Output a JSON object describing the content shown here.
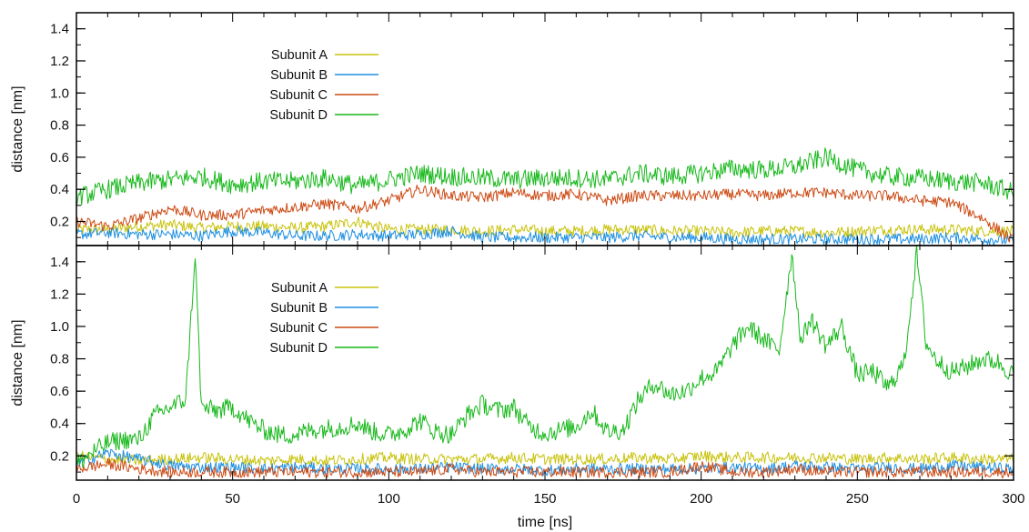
{
  "chart_data": {
    "type": "line",
    "xlabel": "time [ns]",
    "x_ticks": [
      "0",
      "50",
      "100",
      "150",
      "200",
      "250",
      "300"
    ],
    "xlim": [
      0,
      300
    ],
    "series_colors": {
      "Subunit A": "#c8c20a",
      "Subunit B": "#1c8fe0",
      "Subunit C": "#cc4a14",
      "Subunit D": "#16b81a"
    },
    "panels": [
      {
        "id": "top",
        "ylabel": "distance [nm]",
        "ylim": [
          0.05,
          1.5
        ],
        "y_ticks": [
          "0.2",
          "0.4",
          "0.6",
          "0.8",
          "1.0",
          "1.2",
          "1.4"
        ],
        "legend": [
          "Subunit A",
          "Subunit B",
          "Subunit C",
          "Subunit D"
        ],
        "legend_position": "upper-left",
        "series": [
          {
            "name": "Subunit A",
            "x": [
              0,
              10,
              20,
              30,
              40,
              50,
              60,
              70,
              80,
              90,
              100,
              110,
              120,
              130,
              140,
              150,
              160,
              170,
              180,
              190,
              200,
              210,
              220,
              230,
              240,
              250,
              260,
              270,
              280,
              290,
              300
            ],
            "values": [
              0.15,
              0.15,
              0.17,
              0.18,
              0.16,
              0.17,
              0.17,
              0.16,
              0.17,
              0.2,
              0.15,
              0.15,
              0.15,
              0.14,
              0.15,
              0.14,
              0.14,
              0.15,
              0.15,
              0.14,
              0.14,
              0.13,
              0.14,
              0.14,
              0.13,
              0.14,
              0.15,
              0.15,
              0.15,
              0.14,
              0.14
            ]
          },
          {
            "name": "Subunit B",
            "x": [
              0,
              10,
              20,
              30,
              40,
              50,
              60,
              70,
              80,
              90,
              100,
              110,
              120,
              130,
              140,
              150,
              160,
              170,
              180,
              190,
              200,
              210,
              220,
              230,
              240,
              250,
              260,
              270,
              280,
              290,
              300
            ],
            "values": [
              0.12,
              0.13,
              0.12,
              0.12,
              0.11,
              0.14,
              0.13,
              0.11,
              0.11,
              0.12,
              0.11,
              0.12,
              0.14,
              0.1,
              0.1,
              0.1,
              0.1,
              0.1,
              0.11,
              0.1,
              0.1,
              0.09,
              0.09,
              0.09,
              0.09,
              0.09,
              0.09,
              0.09,
              0.1,
              0.09,
              0.08
            ]
          },
          {
            "name": "Subunit C",
            "x": [
              0,
              10,
              20,
              30,
              40,
              50,
              60,
              70,
              80,
              90,
              100,
              110,
              120,
              130,
              140,
              150,
              160,
              170,
              180,
              190,
              200,
              210,
              220,
              230,
              240,
              250,
              260,
              270,
              280,
              290,
              300
            ],
            "values": [
              0.2,
              0.17,
              0.22,
              0.28,
              0.24,
              0.24,
              0.27,
              0.29,
              0.31,
              0.28,
              0.33,
              0.4,
              0.36,
              0.35,
              0.38,
              0.36,
              0.37,
              0.33,
              0.36,
              0.36,
              0.36,
              0.37,
              0.36,
              0.38,
              0.38,
              0.36,
              0.36,
              0.33,
              0.32,
              0.22,
              0.08
            ]
          },
          {
            "name": "Subunit D",
            "x": [
              0,
              10,
              20,
              30,
              40,
              50,
              60,
              70,
              80,
              90,
              100,
              110,
              120,
              130,
              140,
              150,
              160,
              170,
              180,
              190,
              200,
              210,
              220,
              230,
              240,
              250,
              260,
              270,
              280,
              290,
              300
            ],
            "values": [
              0.35,
              0.4,
              0.44,
              0.46,
              0.48,
              0.43,
              0.45,
              0.45,
              0.47,
              0.42,
              0.46,
              0.5,
              0.48,
              0.47,
              0.46,
              0.47,
              0.47,
              0.46,
              0.5,
              0.48,
              0.5,
              0.53,
              0.52,
              0.54,
              0.6,
              0.52,
              0.48,
              0.47,
              0.45,
              0.44,
              0.38
            ]
          }
        ]
      },
      {
        "id": "bottom",
        "ylabel": "distance [nm]",
        "ylim": [
          0.05,
          1.5
        ],
        "y_ticks": [
          "0.2",
          "0.4",
          "0.6",
          "0.8",
          "1.0",
          "1.2",
          "1.4"
        ],
        "legend": [
          "Subunit A",
          "Subunit B",
          "Subunit C",
          "Subunit D"
        ],
        "legend_position": "upper-left",
        "series": [
          {
            "name": "Subunit A",
            "x": [
              0,
              10,
              20,
              30,
              40,
              50,
              60,
              70,
              80,
              90,
              100,
              110,
              120,
              130,
              140,
              150,
              160,
              170,
              180,
              190,
              200,
              210,
              220,
              230,
              240,
              250,
              260,
              270,
              280,
              290,
              300
            ],
            "values": [
              0.2,
              0.18,
              0.17,
              0.18,
              0.19,
              0.18,
              0.17,
              0.18,
              0.17,
              0.18,
              0.19,
              0.18,
              0.18,
              0.18,
              0.19,
              0.18,
              0.18,
              0.18,
              0.19,
              0.18,
              0.2,
              0.19,
              0.19,
              0.19,
              0.19,
              0.18,
              0.19,
              0.18,
              0.19,
              0.18,
              0.18
            ]
          },
          {
            "name": "Subunit B",
            "x": [
              0,
              10,
              20,
              30,
              40,
              50,
              60,
              70,
              80,
              90,
              100,
              110,
              120,
              130,
              140,
              150,
              160,
              170,
              180,
              190,
              200,
              210,
              220,
              230,
              240,
              250,
              260,
              270,
              280,
              290,
              300
            ],
            "values": [
              0.15,
              0.22,
              0.18,
              0.14,
              0.13,
              0.13,
              0.12,
              0.13,
              0.12,
              0.12,
              0.12,
              0.12,
              0.13,
              0.12,
              0.12,
              0.11,
              0.12,
              0.12,
              0.12,
              0.12,
              0.12,
              0.13,
              0.12,
              0.14,
              0.13,
              0.12,
              0.13,
              0.12,
              0.14,
              0.13,
              0.12
            ]
          },
          {
            "name": "Subunit C",
            "x": [
              0,
              10,
              20,
              30,
              40,
              50,
              60,
              70,
              80,
              90,
              100,
              110,
              120,
              130,
              140,
              150,
              160,
              170,
              180,
              190,
              200,
              210,
              220,
              230,
              240,
              250,
              260,
              270,
              280,
              290,
              300
            ],
            "values": [
              0.12,
              0.15,
              0.12,
              0.1,
              0.1,
              0.1,
              0.1,
              0.1,
              0.1,
              0.1,
              0.1,
              0.1,
              0.12,
              0.1,
              0.1,
              0.1,
              0.1,
              0.1,
              0.1,
              0.1,
              0.14,
              0.1,
              0.1,
              0.12,
              0.1,
              0.1,
              0.1,
              0.1,
              0.1,
              0.1,
              0.1
            ]
          },
          {
            "name": "Subunit D",
            "x": [
              0,
              5,
              10,
              15,
              20,
              25,
              30,
              35,
              38,
              40,
              45,
              50,
              55,
              60,
              65,
              70,
              75,
              80,
              85,
              90,
              95,
              100,
              105,
              110,
              115,
              120,
              125,
              130,
              135,
              140,
              145,
              150,
              155,
              160,
              165,
              170,
              175,
              180,
              185,
              190,
              195,
              200,
              205,
              210,
              215,
              220,
              225,
              229,
              232,
              235,
              240,
              245,
              250,
              255,
              260,
              265,
              269,
              272,
              275,
              280,
              285,
              290,
              295,
              300
            ],
            "values": [
              0.15,
              0.22,
              0.28,
              0.3,
              0.3,
              0.45,
              0.5,
              0.55,
              1.45,
              0.5,
              0.48,
              0.5,
              0.42,
              0.36,
              0.33,
              0.33,
              0.36,
              0.37,
              0.38,
              0.4,
              0.35,
              0.33,
              0.36,
              0.42,
              0.35,
              0.33,
              0.45,
              0.52,
              0.48,
              0.5,
              0.38,
              0.34,
              0.36,
              0.38,
              0.48,
              0.35,
              0.36,
              0.55,
              0.65,
              0.58,
              0.6,
              0.68,
              0.72,
              0.88,
              1.0,
              0.92,
              0.85,
              1.45,
              0.9,
              1.05,
              0.88,
              1.0,
              0.7,
              0.72,
              0.62,
              0.78,
              1.45,
              0.9,
              0.8,
              0.72,
              0.75,
              0.8,
              0.78,
              0.7
            ]
          }
        ]
      }
    ]
  }
}
